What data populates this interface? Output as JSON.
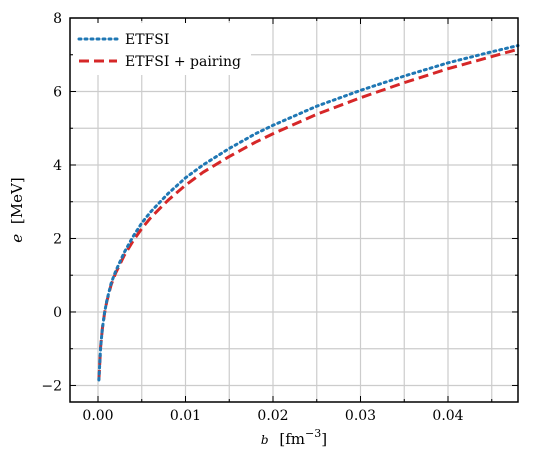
{
  "chart_data": {
    "type": "line",
    "xlabel_symbol": "b",
    "xlabel_unit": "fm",
    "xlabel_exp": "−3",
    "ylabel_symbol": "e",
    "ylabel_unit": "MeV",
    "xlim": [
      -0.0032,
      0.048
    ],
    "ylim": [
      -2.45,
      8
    ],
    "xticks": [
      0,
      0.01,
      0.02,
      0.03,
      0.04
    ],
    "xtick_labels": [
      "0.00",
      "0.01",
      "0.02",
      "0.03",
      "0.04"
    ],
    "xticks_minor": [
      0.005,
      0.015,
      0.025,
      0.035,
      0.045
    ],
    "yticks": [
      -2,
      0,
      2,
      4,
      6,
      8
    ],
    "ytick_labels": [
      "−2",
      "0",
      "2",
      "4",
      "6",
      "8"
    ],
    "yticks_minor": [
      -1,
      1,
      3,
      5,
      7
    ],
    "grid": true,
    "legend_position": "top-left",
    "series": [
      {
        "name": "ETFSI",
        "color": "#1f77b4",
        "style": "dotted",
        "x": [
          0.0001,
          0.0003,
          0.0005,
          0.00075,
          0.001,
          0.0015,
          0.002,
          0.003,
          0.004,
          0.005,
          0.006,
          0.008,
          0.01,
          0.012,
          0.015,
          0.018,
          0.02,
          0.025,
          0.03,
          0.035,
          0.04,
          0.045,
          0.048
        ],
        "y": [
          -1.85,
          -0.95,
          -0.45,
          -0.02,
          0.3,
          0.78,
          1.1,
          1.62,
          2.05,
          2.42,
          2.72,
          3.22,
          3.65,
          4.0,
          4.45,
          4.85,
          5.08,
          5.6,
          6.03,
          6.42,
          6.78,
          7.08,
          7.25
        ]
      },
      {
        "name": "ETFSI + pairing",
        "color": "#d62728",
        "style": "dashed",
        "x": [
          0.0001,
          0.0003,
          0.0005,
          0.00075,
          0.001,
          0.0015,
          0.002,
          0.003,
          0.004,
          0.005,
          0.006,
          0.008,
          0.01,
          0.012,
          0.015,
          0.018,
          0.02,
          0.025,
          0.03,
          0.035,
          0.04,
          0.045,
          0.048
        ],
        "y": [
          -1.85,
          -0.95,
          -0.45,
          -0.03,
          0.28,
          0.74,
          1.05,
          1.54,
          1.93,
          2.27,
          2.56,
          3.04,
          3.45,
          3.8,
          4.23,
          4.62,
          4.85,
          5.38,
          5.83,
          6.24,
          6.62,
          6.95,
          7.15
        ]
      }
    ]
  }
}
